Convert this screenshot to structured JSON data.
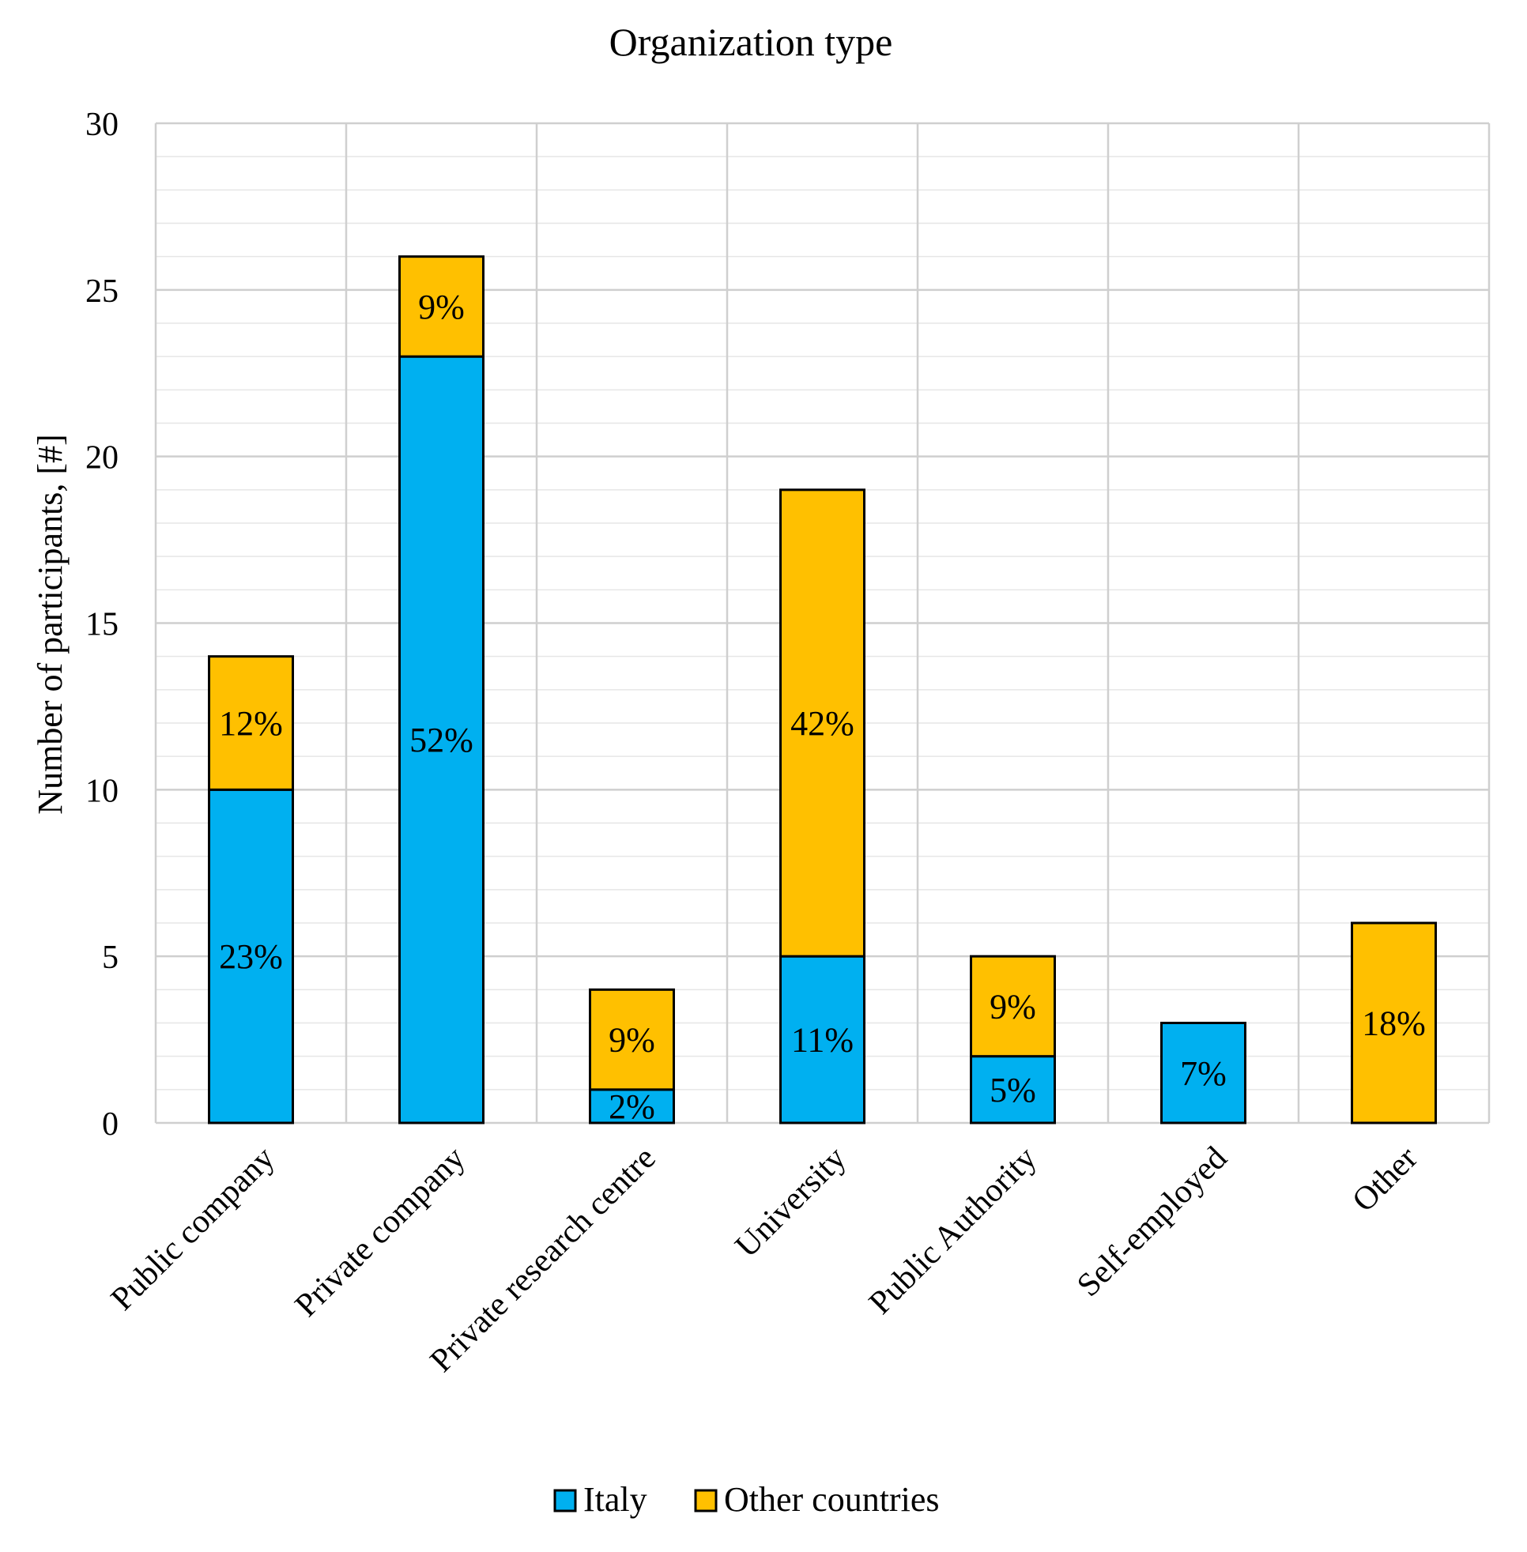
{
  "chart_data": {
    "type": "bar",
    "stacked": true,
    "title": "Organization type",
    "xlabel": "",
    "ylabel": "Number of participants, [#]",
    "ylim": [
      0,
      30
    ],
    "yticks": [
      0,
      5,
      10,
      15,
      20,
      25,
      30
    ],
    "minor_step": 1,
    "grid": true,
    "legend_position": "bottom",
    "categories": [
      "Public company",
      "Private company",
      "Private research centre",
      "University",
      "Public Authority",
      "Self-employed",
      "Other"
    ],
    "series": [
      {
        "name": "Italy",
        "color": "#00B0F0",
        "values": [
          10,
          23,
          1,
          5,
          2,
          3,
          0
        ],
        "labels": [
          "23%",
          "52%",
          "2%",
          "11%",
          "5%",
          "7%",
          null
        ]
      },
      {
        "name": "Other countries",
        "color": "#FFC000",
        "values": [
          4,
          3,
          3,
          14,
          3,
          0,
          6
        ],
        "labels": [
          "12%",
          "9%",
          "9%",
          "42%",
          "9%",
          null,
          "18%"
        ]
      }
    ]
  }
}
